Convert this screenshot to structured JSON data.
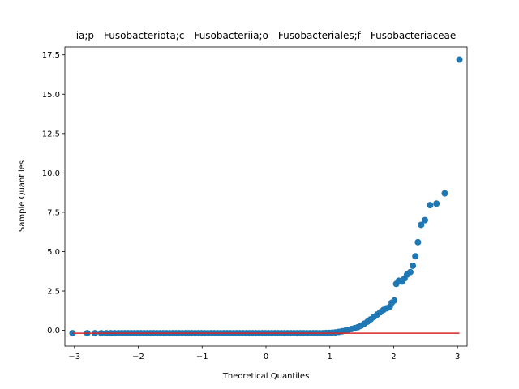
{
  "chart_data": {
    "type": "scatter",
    "title": "ia;p__Fusobacteriota;c__Fusobacteriia;o__Fusobacteriales;f__Fusobacteriaceae",
    "xlabel": "Theoretical Quantiles",
    "ylabel": "Sample Quantiles",
    "xlim": [
      -3.15,
      3.15
    ],
    "ylim": [
      -1.0,
      18.0
    ],
    "xticks": [
      -3,
      -2,
      -1,
      0,
      1,
      2,
      3
    ],
    "yticks": [
      0.0,
      2.5,
      5.0,
      7.5,
      10.0,
      12.5,
      15.0,
      17.5
    ],
    "xtick_labels": [
      "−3",
      "−2",
      "−1",
      "0",
      "1",
      "2",
      "3"
    ],
    "ytick_labels": [
      "0.0",
      "2.5",
      "5.0",
      "7.5",
      "10.0",
      "12.5",
      "15.0",
      "17.5"
    ],
    "grid": false,
    "marker_color": "#1f77b4",
    "line_color": "#d62728",
    "reference_line": {
      "x": [
        -3.03,
        3.03
      ],
      "y": [
        -0.18,
        -0.18
      ]
    },
    "points": [
      [
        -3.03,
        -0.18
      ],
      [
        -2.8,
        -0.18
      ],
      [
        -2.68,
        -0.18
      ],
      [
        -2.58,
        -0.18
      ],
      [
        -2.5,
        -0.18
      ],
      [
        -2.43,
        -0.18
      ],
      [
        -2.37,
        -0.18
      ],
      [
        -2.31,
        -0.18
      ],
      [
        -2.26,
        -0.18
      ],
      [
        -2.21,
        -0.18
      ],
      [
        -2.16,
        -0.18
      ],
      [
        -2.11,
        -0.18
      ],
      [
        -2.06,
        -0.18
      ],
      [
        -2.01,
        -0.18
      ],
      [
        -1.96,
        -0.18
      ],
      [
        -1.91,
        -0.18
      ],
      [
        -1.86,
        -0.18
      ],
      [
        -1.81,
        -0.18
      ],
      [
        -1.76,
        -0.18
      ],
      [
        -1.71,
        -0.18
      ],
      [
        -1.66,
        -0.18
      ],
      [
        -1.61,
        -0.18
      ],
      [
        -1.56,
        -0.18
      ],
      [
        -1.51,
        -0.18
      ],
      [
        -1.46,
        -0.18
      ],
      [
        -1.41,
        -0.18
      ],
      [
        -1.36,
        -0.18
      ],
      [
        -1.31,
        -0.18
      ],
      [
        -1.26,
        -0.18
      ],
      [
        -1.21,
        -0.18
      ],
      [
        -1.16,
        -0.18
      ],
      [
        -1.11,
        -0.18
      ],
      [
        -1.06,
        -0.18
      ],
      [
        -1.01,
        -0.18
      ],
      [
        -0.96,
        -0.18
      ],
      [
        -0.91,
        -0.18
      ],
      [
        -0.86,
        -0.18
      ],
      [
        -0.81,
        -0.18
      ],
      [
        -0.76,
        -0.18
      ],
      [
        -0.71,
        -0.18
      ],
      [
        -0.66,
        -0.18
      ],
      [
        -0.61,
        -0.18
      ],
      [
        -0.56,
        -0.18
      ],
      [
        -0.51,
        -0.18
      ],
      [
        -0.46,
        -0.18
      ],
      [
        -0.41,
        -0.18
      ],
      [
        -0.36,
        -0.18
      ],
      [
        -0.31,
        -0.18
      ],
      [
        -0.26,
        -0.18
      ],
      [
        -0.21,
        -0.18
      ],
      [
        -0.16,
        -0.18
      ],
      [
        -0.11,
        -0.18
      ],
      [
        -0.06,
        -0.18
      ],
      [
        -0.01,
        -0.18
      ],
      [
        0.04,
        -0.18
      ],
      [
        0.09,
        -0.18
      ],
      [
        0.14,
        -0.18
      ],
      [
        0.19,
        -0.18
      ],
      [
        0.24,
        -0.18
      ],
      [
        0.29,
        -0.18
      ],
      [
        0.34,
        -0.18
      ],
      [
        0.39,
        -0.18
      ],
      [
        0.44,
        -0.18
      ],
      [
        0.49,
        -0.18
      ],
      [
        0.54,
        -0.18
      ],
      [
        0.59,
        -0.18
      ],
      [
        0.64,
        -0.18
      ],
      [
        0.69,
        -0.18
      ],
      [
        0.74,
        -0.18
      ],
      [
        0.79,
        -0.18
      ],
      [
        0.84,
        -0.18
      ],
      [
        0.89,
        -0.18
      ],
      [
        0.94,
        -0.17
      ],
      [
        0.99,
        -0.16
      ],
      [
        1.04,
        -0.15
      ],
      [
        1.09,
        -0.13
      ],
      [
        1.14,
        -0.1
      ],
      [
        1.19,
        -0.06
      ],
      [
        1.24,
        -0.02
      ],
      [
        1.29,
        0.03
      ],
      [
        1.34,
        0.08
      ],
      [
        1.39,
        0.14
      ],
      [
        1.44,
        0.2
      ],
      [
        1.49,
        0.3
      ],
      [
        1.54,
        0.42
      ],
      [
        1.59,
        0.55
      ],
      [
        1.64,
        0.7
      ],
      [
        1.69,
        0.85
      ],
      [
        1.74,
        1.0
      ],
      [
        1.79,
        1.15
      ],
      [
        1.84,
        1.3
      ],
      [
        1.89,
        1.4
      ],
      [
        1.94,
        1.5
      ],
      [
        1.97,
        1.75
      ],
      [
        2.01,
        1.9
      ],
      [
        2.04,
        2.95
      ],
      [
        2.08,
        3.15
      ],
      [
        2.13,
        3.1
      ],
      [
        2.17,
        3.3
      ],
      [
        2.21,
        3.55
      ],
      [
        2.26,
        3.7
      ],
      [
        2.3,
        4.1
      ],
      [
        2.34,
        4.7
      ],
      [
        2.38,
        5.6
      ],
      [
        2.43,
        6.7
      ],
      [
        2.49,
        7.0
      ],
      [
        2.57,
        7.95
      ],
      [
        2.67,
        8.05
      ],
      [
        2.8,
        8.7
      ],
      [
        3.03,
        17.2
      ]
    ]
  }
}
